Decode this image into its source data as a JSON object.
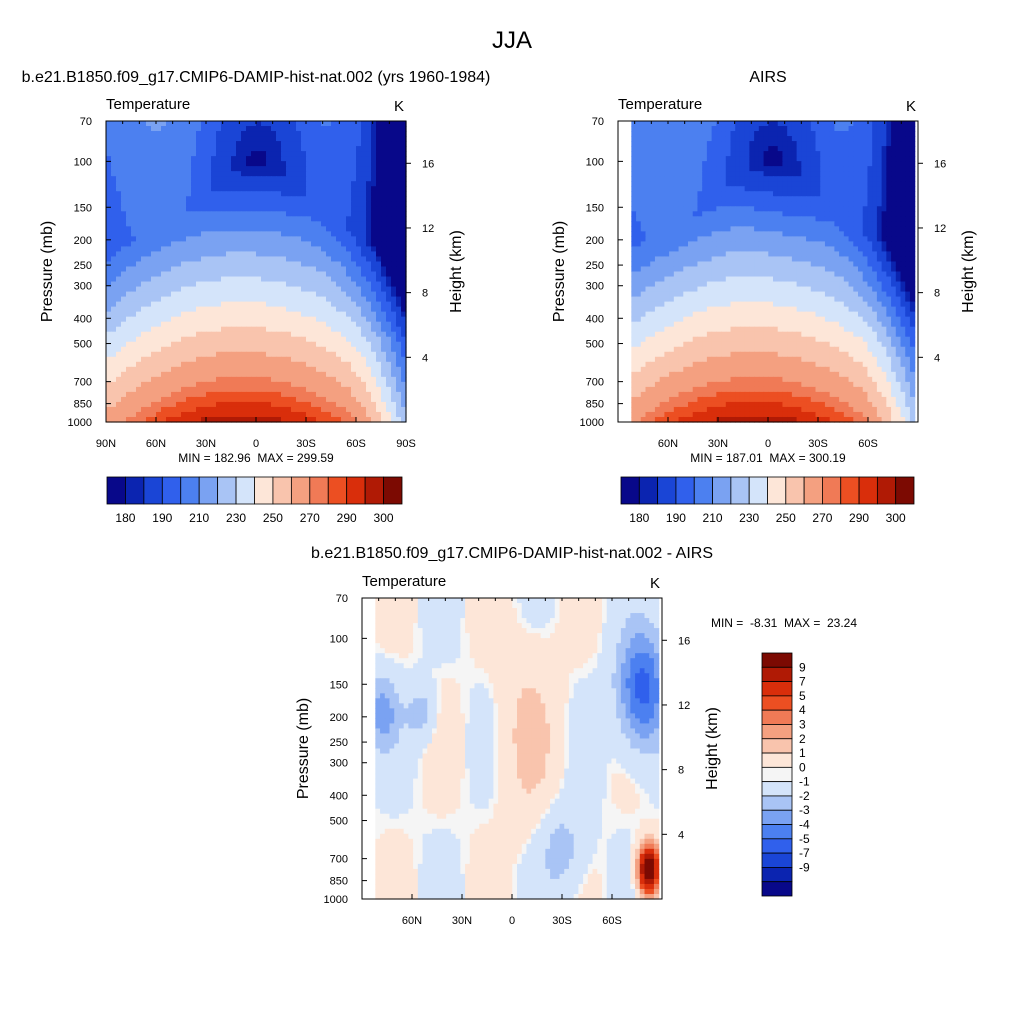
{
  "figure": {
    "title": "JJA"
  },
  "chart_data": [
    {
      "type": "heatmap",
      "id": "model",
      "title": "b.e21.B1850.f09_g17.CMIP6-DAMIP-hist-nat.002 (yrs 1960-1984)",
      "subtitle_left": "Temperature",
      "subtitle_right": "K",
      "ylabel": "Pressure (mb)",
      "y2label": "Height (km)",
      "xticks": [
        "90N",
        "60N",
        "30N",
        "0",
        "30S",
        "60S",
        "90S"
      ],
      "xtick_values": [
        90,
        60,
        30,
        0,
        -30,
        -60,
        -90
      ],
      "yticks": [
        "70",
        "100",
        "150",
        "200",
        "250",
        "300",
        "400",
        "500",
        "700",
        "850",
        "1000"
      ],
      "ytick_values": [
        70,
        100,
        150,
        200,
        250,
        300,
        400,
        500,
        700,
        850,
        1000
      ],
      "y2ticks": [
        "16",
        "12",
        "8",
        "4"
      ],
      "y2tick_values": [
        16,
        12,
        8,
        4
      ],
      "xlim": [
        90,
        -90
      ],
      "ylim": [
        1000,
        70
      ],
      "yscale": "log",
      "minmax_text": "MIN = 182.96  MAX = 299.59",
      "min": 182.96,
      "max": 299.59,
      "colorbar_labels": [
        "180",
        "190",
        "210",
        "230",
        "250",
        "270",
        "290",
        "300"
      ]
    },
    {
      "type": "heatmap",
      "id": "obs",
      "title": "AIRS",
      "subtitle_left": "Temperature",
      "subtitle_right": "K",
      "ylabel": "Pressure (mb)",
      "y2label": "Height (km)",
      "xticks": [
        "60N",
        "30N",
        "0",
        "30S",
        "60S"
      ],
      "xtick_values": [
        60,
        30,
        0,
        -30,
        -60
      ],
      "yticks": [
        "70",
        "100",
        "150",
        "200",
        "250",
        "300",
        "400",
        "500",
        "700",
        "850",
        "1000"
      ],
      "ytick_values": [
        70,
        100,
        150,
        200,
        250,
        300,
        400,
        500,
        700,
        850,
        1000
      ],
      "y2ticks": [
        "16",
        "12",
        "8",
        "4"
      ],
      "y2tick_values": [
        16,
        12,
        8,
        4
      ],
      "xlim": [
        90,
        -90
      ],
      "ylim": [
        1000,
        70
      ],
      "yscale": "log",
      "minmax_text": "MIN = 187.01  MAX = 300.19",
      "min": 187.01,
      "max": 300.19,
      "colorbar_labels": [
        "180",
        "190",
        "210",
        "230",
        "250",
        "270",
        "290",
        "300"
      ]
    },
    {
      "type": "heatmap",
      "id": "diff",
      "title": "b.e21.B1850.f09_g17.CMIP6-DAMIP-hist-nat.002 - AIRS",
      "subtitle_left": "Temperature",
      "subtitle_right": "K",
      "ylabel": "Pressure (mb)",
      "y2label": "Height (km)",
      "xticks": [
        "60N",
        "30N",
        "0",
        "30S",
        "60S"
      ],
      "xtick_values": [
        60,
        30,
        0,
        -30,
        -60
      ],
      "yticks": [
        "70",
        "100",
        "150",
        "200",
        "250",
        "300",
        "400",
        "500",
        "700",
        "850",
        "1000"
      ],
      "ytick_values": [
        70,
        100,
        150,
        200,
        250,
        300,
        400,
        500,
        700,
        850,
        1000
      ],
      "y2ticks": [
        "16",
        "12",
        "8",
        "4"
      ],
      "y2tick_values": [
        16,
        12,
        8,
        4
      ],
      "xlim": [
        90,
        -90
      ],
      "ylim": [
        1000,
        70
      ],
      "yscale": "log",
      "minmax_text": "MIN =  -8.31  MAX =  23.24",
      "min": -8.31,
      "max": 23.24,
      "colorbar_labels": [
        "9",
        "7",
        "5",
        "4",
        "3",
        "2",
        "1",
        "0",
        "-1",
        "-2",
        "-3",
        "-4",
        "-5",
        "-7",
        "-9"
      ]
    }
  ],
  "colors": {
    "temperature_scale": [
      "#08088a",
      "#0b24b0",
      "#1a45d6",
      "#3060ec",
      "#4c80f0",
      "#7aa2f2",
      "#a9c4f5",
      "#d4e4fa",
      "#fde6d8",
      "#f9c4ad",
      "#f4a080",
      "#f07a56",
      "#ec4f22",
      "#d92e0b",
      "#b01a05",
      "#7c0a02"
    ],
    "difference_scale": [
      "#7c0a02",
      "#b01a05",
      "#d92e0b",
      "#ec4f22",
      "#f07a56",
      "#f4a080",
      "#f9c4ad",
      "#fde6d8",
      "#f5f5f5",
      "#d4e4fa",
      "#a9c4f5",
      "#7aa2f2",
      "#4c80f0",
      "#3060ec",
      "#1a45d6",
      "#0b24b0",
      "#08088a"
    ]
  }
}
